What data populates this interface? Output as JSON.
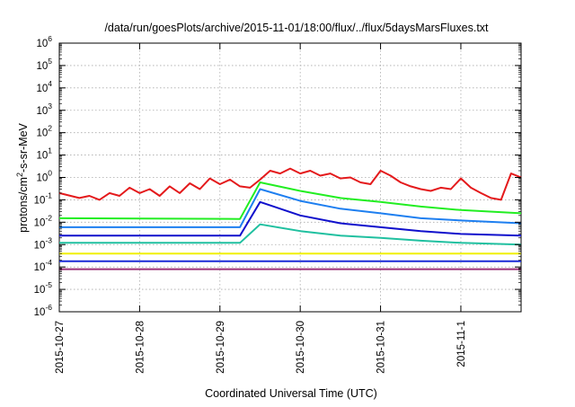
{
  "chart_data": {
    "type": "line",
    "title": "/data/run/goesPlots/archive/2015-11-01/18:00/flux/../flux/5daysMarsFluxes.txt",
    "xlabel": "Coordinated Universal Time (UTC)",
    "ylabel_parts": {
      "pre": "protons/cm",
      "sup": "2",
      "post": "-s-sr-MeV"
    },
    "xlim": [
      "2015-10-27 00:00",
      "2015-11-01 18:00"
    ],
    "ylim": [
      1e-06,
      1000000.0
    ],
    "yscale": "log",
    "grid": true,
    "legend": "none",
    "x_ticks": [
      "2015-10-27",
      "2015-10-28",
      "2015-10-29",
      "2015-10-30",
      "2015-10-31",
      "2015-11-1"
    ],
    "y_ticks": [
      {
        "base": "10",
        "exp": "6"
      },
      {
        "base": "10",
        "exp": "5"
      },
      {
        "base": "10",
        "exp": "4"
      },
      {
        "base": "10",
        "exp": "3"
      },
      {
        "base": "10",
        "exp": "2"
      },
      {
        "base": "10",
        "exp": "1"
      },
      {
        "base": "10",
        "exp": "0"
      },
      {
        "base": "10",
        "exp": "-1"
      },
      {
        "base": "10",
        "exp": "-2"
      },
      {
        "base": "10",
        "exp": "-3"
      },
      {
        "base": "10",
        "exp": "-4"
      },
      {
        "base": "10",
        "exp": "-5"
      },
      {
        "base": "10",
        "exp": "-6"
      }
    ],
    "series": [
      {
        "color": "#e41a1c",
        "x": [
          "2015-10-27 00:00",
          "2015-10-27 06:00",
          "2015-10-27 09:00",
          "2015-10-27 12:00",
          "2015-10-27 15:00",
          "2015-10-27 18:00",
          "2015-10-27 21:00",
          "2015-10-28 00:00",
          "2015-10-28 03:00",
          "2015-10-28 06:00",
          "2015-10-28 09:00",
          "2015-10-28 12:00",
          "2015-10-28 15:00",
          "2015-10-28 18:00",
          "2015-10-28 21:00",
          "2015-10-29 00:00",
          "2015-10-29 03:00",
          "2015-10-29 06:00",
          "2015-10-29 09:00",
          "2015-10-29 12:00",
          "2015-10-29 15:00",
          "2015-10-29 18:00",
          "2015-10-29 21:00",
          "2015-10-30 00:00",
          "2015-10-30 03:00",
          "2015-10-30 06:00",
          "2015-10-30 09:00",
          "2015-10-30 12:00",
          "2015-10-30 15:00",
          "2015-10-30 18:00",
          "2015-10-30 21:00",
          "2015-10-31 00:00",
          "2015-10-31 03:00",
          "2015-10-31 06:00",
          "2015-10-31 09:00",
          "2015-10-31 12:00",
          "2015-10-31 15:00",
          "2015-10-31 18:00",
          "2015-10-31 21:00",
          "2015-11-01 00:00",
          "2015-11-01 03:00",
          "2015-11-01 06:00",
          "2015-11-01 09:00",
          "2015-11-01 12:00",
          "2015-11-01 15:00",
          "2015-11-01 18:00"
        ],
        "y": [
          0.2,
          0.12,
          0.15,
          0.1,
          0.2,
          0.15,
          0.35,
          0.2,
          0.3,
          0.15,
          0.4,
          0.2,
          0.55,
          0.3,
          0.9,
          0.5,
          0.8,
          0.4,
          0.35,
          0.8,
          2.0,
          1.5,
          2.5,
          1.5,
          2.0,
          1.2,
          1.5,
          0.9,
          1.0,
          0.6,
          0.5,
          2.0,
          1.2,
          0.6,
          0.4,
          0.3,
          0.25,
          0.35,
          0.3,
          0.9,
          0.35,
          0.2,
          0.12,
          0.1,
          1.5,
          1.0
        ]
      },
      {
        "color": "#22ee22",
        "x": [
          "2015-10-27 00:00",
          "2015-10-29 06:00",
          "2015-10-29 12:00",
          "2015-10-30 00:00",
          "2015-10-30 12:00",
          "2015-10-31 00:00",
          "2015-10-31 12:00",
          "2015-11-01 00:00",
          "2015-11-01 18:00"
        ],
        "y": [
          0.015,
          0.014,
          0.6,
          0.25,
          0.12,
          0.08,
          0.05,
          0.035,
          0.025
        ]
      },
      {
        "color": "#1e7ff0",
        "x": [
          "2015-10-27 00:00",
          "2015-10-29 06:00",
          "2015-10-29 12:00",
          "2015-10-30 00:00",
          "2015-10-30 12:00",
          "2015-10-31 00:00",
          "2015-10-31 12:00",
          "2015-11-01 00:00",
          "2015-11-01 18:00"
        ],
        "y": [
          0.006,
          0.006,
          0.3,
          0.09,
          0.04,
          0.025,
          0.015,
          0.012,
          0.009
        ]
      },
      {
        "color": "#1010cc",
        "x": [
          "2015-10-27 00:00",
          "2015-10-29 06:00",
          "2015-10-29 12:00",
          "2015-10-30 00:00",
          "2015-10-30 12:00",
          "2015-10-31 00:00",
          "2015-10-31 12:00",
          "2015-11-01 00:00",
          "2015-11-01 18:00"
        ],
        "y": [
          0.0025,
          0.0025,
          0.08,
          0.02,
          0.009,
          0.006,
          0.004,
          0.003,
          0.0025
        ]
      },
      {
        "color": "#20c0a0",
        "x": [
          "2015-10-27 00:00",
          "2015-10-29 06:00",
          "2015-10-29 12:00",
          "2015-10-30 00:00",
          "2015-10-30 12:00",
          "2015-10-31 00:00",
          "2015-10-31 12:00",
          "2015-11-01 00:00",
          "2015-11-01 18:00"
        ],
        "y": [
          0.0012,
          0.0012,
          0.008,
          0.004,
          0.0025,
          0.002,
          0.0015,
          0.0012,
          0.001
        ]
      },
      {
        "color": "#f0f000",
        "x": [
          "2015-10-27 00:00",
          "2015-11-01 18:00"
        ],
        "y": [
          0.0004,
          0.0004
        ]
      },
      {
        "color": "#1a2bd6",
        "x": [
          "2015-10-27 00:00",
          "2015-11-01 18:00"
        ],
        "y": [
          0.00018,
          0.00018
        ]
      },
      {
        "color": "#9b3077",
        "x": [
          "2015-10-27 00:00",
          "2015-11-01 18:00"
        ],
        "y": [
          8e-05,
          8e-05
        ]
      }
    ]
  }
}
